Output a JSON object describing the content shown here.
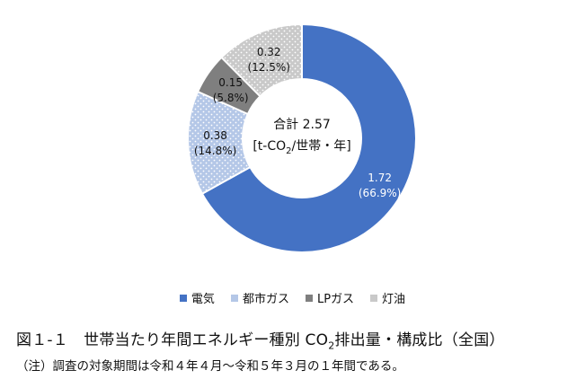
{
  "chart_data": {
    "type": "pie",
    "donut": true,
    "center_label": {
      "line1": "合計 2.57",
      "unit_prefix": "[t-CO",
      "unit_sub": "2",
      "unit_suffix": "/世帯・年]"
    },
    "slices": [
      {
        "name": "電気",
        "value": 1.72,
        "value_label": "1.72",
        "percent_label": "(66.9%)",
        "color": "#4472C4",
        "pattern": "solid"
      },
      {
        "name": "都市ガス",
        "value": 0.38,
        "value_label": "0.38",
        "percent_label": "(14.8%)",
        "color": "#B4C7E7",
        "pattern": "dots"
      },
      {
        "name": "LPガス",
        "value": 0.15,
        "value_label": "0.15",
        "percent_label": "(5.8%)",
        "color": "#7F7F7F",
        "pattern": "solid"
      },
      {
        "name": "灯油",
        "value": 0.32,
        "value_label": "0.32",
        "percent_label": "(12.5%)",
        "color": "#C9C9C9",
        "pattern": "dots"
      }
    ],
    "legend_position": "bottom"
  },
  "caption": {
    "prefix": "図１-１　世帯当たり年間エネルギー種別 CO",
    "sub": "2",
    "suffix": "排出量・構成比（全国）"
  },
  "note": "（注）調査の対象期間は令和４年４月～令和５年３月の１年間である。"
}
